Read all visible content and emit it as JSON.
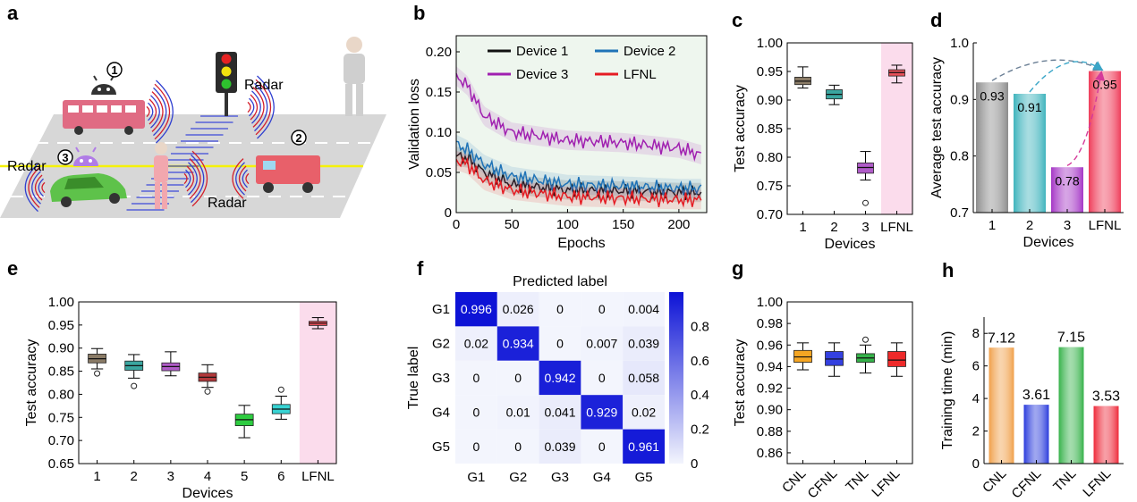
{
  "colors": {
    "road": "#d7d7d7",
    "bus": "#e06b83",
    "car": "#5ec24a",
    "truck": "#e8606a",
    "pedestrian": "#f2a7ae",
    "person": "#cfcfcf",
    "android_dark": "#333333",
    "android_purple": "#b07ce6",
    "android_teal": "#2a8f8f",
    "crossing": "#3c48d8",
    "lane": "#f5f10a",
    "wave_red": "#d41f2a",
    "wave_blue": "#2f3fd0",
    "highlight": "#fbdcec",
    "heat_low": "#f3f5fd",
    "heat_high": "#0c12d6"
  },
  "panels": [
    {
      "id": "a",
      "letter": "a"
    },
    {
      "id": "b",
      "letter": "b"
    },
    {
      "id": "c",
      "letter": "c"
    },
    {
      "id": "d",
      "letter": "d"
    },
    {
      "id": "e",
      "letter": "e"
    },
    {
      "id": "f",
      "letter": "f"
    },
    {
      "id": "g",
      "letter": "g"
    },
    {
      "id": "h",
      "letter": "h"
    }
  ],
  "scene": {
    "labels": {
      "radar_top": "Radar",
      "radar_left": "Radar",
      "radar_bottom": "Radar"
    },
    "markers": {
      "bus": "1",
      "truck": "2",
      "car": "3"
    }
  },
  "chart_data": [
    {
      "panel": "b",
      "type": "line",
      "xlabel": "Epochs",
      "ylabel": "Validation loss",
      "xlim": [
        0,
        225
      ],
      "ylim": [
        0,
        0.22
      ],
      "xticks": [
        "0",
        "50",
        "100",
        "150",
        "200"
      ],
      "yticks": [
        "0",
        "0.05",
        "0.10",
        "0.15",
        "0.20"
      ],
      "legend": "top",
      "series": [
        {
          "name": "Device 1",
          "color": "#111111",
          "x": [
            0,
            10,
            25,
            50,
            100,
            150,
            200,
            220
          ],
          "y": [
            0.07,
            0.068,
            0.05,
            0.035,
            0.028,
            0.027,
            0.025,
            0.025
          ]
        },
        {
          "name": "Device 2",
          "color": "#1f73b7",
          "x": [
            0,
            10,
            25,
            50,
            100,
            150,
            200,
            220
          ],
          "y": [
            0.085,
            0.078,
            0.06,
            0.045,
            0.035,
            0.033,
            0.03,
            0.03
          ]
        },
        {
          "name": "Device 3",
          "color": "#a020b0",
          "x": [
            0,
            10,
            25,
            50,
            100,
            150,
            200,
            220
          ],
          "y": [
            0.17,
            0.158,
            0.12,
            0.1,
            0.09,
            0.087,
            0.08,
            0.072
          ]
        },
        {
          "name": "LFNL",
          "color": "#e51c23",
          "x": [
            0,
            10,
            25,
            50,
            100,
            150,
            200,
            220
          ],
          "y": [
            0.065,
            0.06,
            0.04,
            0.028,
            0.02,
            0.018,
            0.016,
            0.016
          ]
        }
      ]
    },
    {
      "panel": "c",
      "type": "box",
      "xlabel": "Devices",
      "ylabel": "Test accuracy",
      "ylim": [
        0.7,
        1.0
      ],
      "yticks": [
        "0.70",
        "0.75",
        "0.80",
        "0.85",
        "0.90",
        "0.95",
        "1.00"
      ],
      "categories": [
        "1",
        "2",
        "3",
        "LFNL"
      ],
      "highlight": "LFNL",
      "boxes": [
        {
          "min": 0.921,
          "q1": 0.927,
          "median": 0.933,
          "q3": 0.94,
          "max": 0.958,
          "outliers": [],
          "color": "#8a7b66"
        },
        {
          "min": 0.892,
          "q1": 0.902,
          "median": 0.91,
          "q3": 0.918,
          "max": 0.926,
          "outliers": [],
          "color": "#3aa6a0"
        },
        {
          "min": 0.76,
          "q1": 0.772,
          "median": 0.782,
          "q3": 0.79,
          "max": 0.81,
          "outliers": [
            0.72
          ],
          "color": "#b05cc8"
        },
        {
          "min": 0.93,
          "q1": 0.942,
          "median": 0.948,
          "q3": 0.953,
          "max": 0.961,
          "outliers": [],
          "color": "#e8505a"
        }
      ]
    },
    {
      "panel": "d",
      "type": "bar",
      "xlabel": "Devices",
      "ylabel": "Average test accuracy",
      "ylim": [
        0.7,
        1.0
      ],
      "yticks": [
        "0.7",
        "0.8",
        "0.9",
        "1.0"
      ],
      "categories": [
        "1",
        "2",
        "3",
        "LFNL"
      ],
      "values": [
        0.93,
        0.91,
        0.78,
        0.95
      ],
      "labels": [
        "0.93",
        "0.91",
        "0.78",
        "0.95"
      ],
      "colors": [
        "#8c8c8c",
        "#3fb4bd",
        "#a537c6",
        "#ef3d5a"
      ]
    },
    {
      "panel": "e",
      "type": "box",
      "xlabel": "Devices",
      "ylabel": "Test accuracy",
      "ylim": [
        0.65,
        1.0
      ],
      "yticks": [
        "0.65",
        "0.70",
        "0.75",
        "0.80",
        "0.85",
        "0.90",
        "0.95",
        "1.00"
      ],
      "categories": [
        "1",
        "2",
        "3",
        "4",
        "5",
        "6",
        "LFNL"
      ],
      "highlight": "LFNL",
      "boxes": [
        {
          "min": 0.855,
          "q1": 0.868,
          "median": 0.877,
          "q3": 0.887,
          "max": 0.899,
          "outliers": [
            0.845
          ],
          "color": "#8a7b66"
        },
        {
          "min": 0.835,
          "q1": 0.852,
          "median": 0.862,
          "q3": 0.872,
          "max": 0.886,
          "outliers": [
            0.818
          ],
          "color": "#3aa6a0"
        },
        {
          "min": 0.84,
          "q1": 0.851,
          "median": 0.86,
          "q3": 0.868,
          "max": 0.892,
          "outliers": [],
          "color": "#b05cc8"
        },
        {
          "min": 0.815,
          "q1": 0.828,
          "median": 0.837,
          "q3": 0.846,
          "max": 0.864,
          "outliers": [
            0.806
          ],
          "color": "#b0383a"
        },
        {
          "min": 0.706,
          "q1": 0.732,
          "median": 0.745,
          "q3": 0.757,
          "max": 0.776,
          "outliers": [],
          "color": "#2ecc40"
        },
        {
          "min": 0.746,
          "q1": 0.758,
          "median": 0.768,
          "q3": 0.778,
          "max": 0.796,
          "outliers": [
            0.81
          ],
          "color": "#37d3d3"
        },
        {
          "min": 0.942,
          "q1": 0.949,
          "median": 0.954,
          "q3": 0.958,
          "max": 0.966,
          "outliers": [],
          "color": "#e8505a"
        }
      ]
    },
    {
      "panel": "f",
      "type": "heatmap",
      "title": "Predicted label",
      "ylabel": "True label",
      "xcategories": [
        "G1",
        "G2",
        "G3",
        "G4",
        "G5"
      ],
      "ycategories": [
        "G1",
        "G2",
        "G3",
        "G4",
        "G5"
      ],
      "values": [
        [
          0.996,
          0.026,
          0,
          0,
          0.004
        ],
        [
          0.02,
          0.934,
          0,
          0.007,
          0.039
        ],
        [
          0,
          0,
          0.942,
          0,
          0.058
        ],
        [
          0,
          0.01,
          0.041,
          0.929,
          0.02
        ],
        [
          0,
          0,
          0.039,
          0,
          0.961
        ]
      ],
      "labels": [
        [
          "0.996",
          "0.026",
          "0",
          "0",
          "0.004"
        ],
        [
          "0.02",
          "0.934",
          "0",
          "0.007",
          "0.039"
        ],
        [
          "0",
          "0",
          "0.942",
          "0",
          "0.058"
        ],
        [
          "0",
          "0.01",
          "0.041",
          "0.929",
          "0.02"
        ],
        [
          "0",
          "0",
          "0.039",
          "0",
          "0.961"
        ]
      ],
      "colorbar_ticks": [
        "0",
        "0.2",
        "0.4",
        "0.6",
        "0.8"
      ],
      "colorbar_range": [
        0,
        1.0
      ]
    },
    {
      "panel": "g",
      "type": "box",
      "ylabel": "Test accuracy",
      "ylim": [
        0.85,
        1.0
      ],
      "yticks": [
        "0.86",
        "0.88",
        "0.90",
        "0.92",
        "0.94",
        "0.96",
        "0.98",
        "1.00"
      ],
      "categories": [
        "CNL",
        "CFNL",
        "TNL",
        "LFNL"
      ],
      "boxes": [
        {
          "min": 0.937,
          "q1": 0.944,
          "median": 0.949,
          "q3": 0.955,
          "max": 0.962,
          "outliers": [],
          "color": "#f5a623"
        },
        {
          "min": 0.931,
          "q1": 0.941,
          "median": 0.947,
          "q3": 0.954,
          "max": 0.962,
          "outliers": [],
          "color": "#3440e0"
        },
        {
          "min": 0.934,
          "q1": 0.944,
          "median": 0.948,
          "q3": 0.952,
          "max": 0.96,
          "outliers": [
            0.965
          ],
          "color": "#36b24a"
        },
        {
          "min": 0.931,
          "q1": 0.94,
          "median": 0.946,
          "q3": 0.954,
          "max": 0.962,
          "outliers": [],
          "color": "#ee2a2a"
        }
      ]
    },
    {
      "panel": "h",
      "type": "bar",
      "ylabel": "Training time (min)",
      "ylim": [
        0,
        9
      ],
      "yticks": [
        "0",
        "2",
        "4",
        "6",
        "8"
      ],
      "categories": [
        "CNL",
        "CFNL",
        "TNL",
        "LFNL"
      ],
      "values": [
        7.12,
        3.61,
        7.15,
        3.53
      ],
      "labels": [
        "7.12",
        "3.61",
        "7.15",
        "3.53"
      ],
      "colors": [
        "#f0a04a",
        "#2a3bdc",
        "#36b24a",
        "#ee2a3a"
      ]
    }
  ]
}
